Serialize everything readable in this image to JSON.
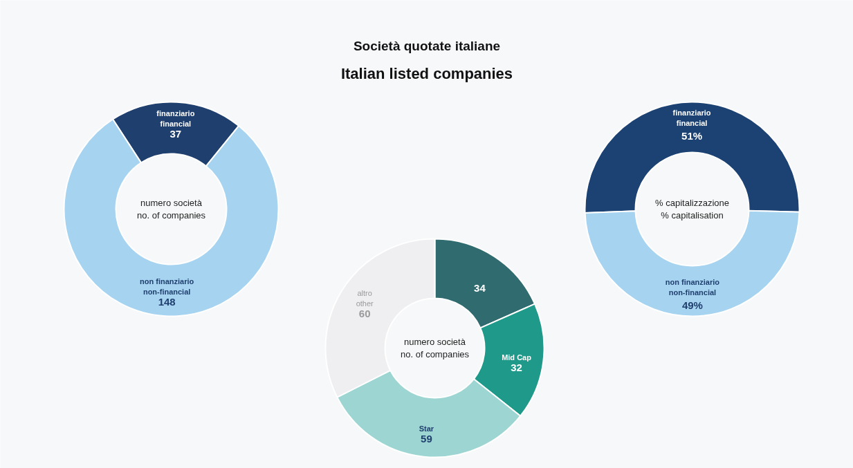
{
  "chart_data": [
    {
      "type": "donut",
      "title": "Società quotate italiane",
      "subtitle": "Italian listed companies",
      "categories": [
        "finanziario\nfinancial",
        "non finanziario\nnon-financial"
      ],
      "values": [
        37,
        148
      ],
      "colors": [
        "#1f3f6e",
        "#a6d3f0"
      ],
      "data_labels": true,
      "annotations": [
        "numero società\nno. of companies"
      ]
    },
    {
      "type": "donut",
      "categories": [
        null,
        "Mid Cap",
        "Star",
        "altro\nother"
      ],
      "values": [
        34,
        32,
        59,
        60
      ],
      "colors": [
        "#2f6b6f",
        "#1f9a8a",
        "#9dd5d2",
        "#efeff2"
      ],
      "data_labels": true,
      "annotations": [
        "numero società\nno. of companies"
      ]
    },
    {
      "type": "donut",
      "categories": [
        "finanziario\nfinancial",
        "non finanziario\nnon-financial"
      ],
      "values": [
        51,
        49
      ],
      "value_labels": [
        "51%",
        "49%"
      ],
      "colors": [
        "#1c4274",
        "#a6d3f0"
      ],
      "annotations": [
        "% capitalizzazione\n% capitalisation"
      ]
    }
  ]
}
